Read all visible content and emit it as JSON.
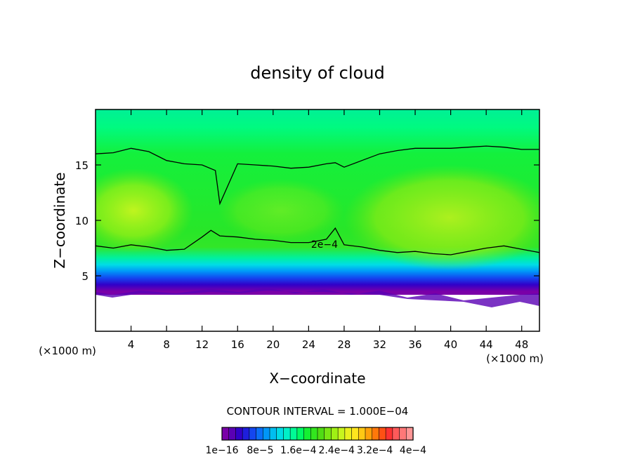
{
  "chart_data": {
    "type": "contour",
    "title": "density of cloud",
    "xlabel": "X−coordinate",
    "ylabel": "Z−coordinate",
    "x_unit": "(×1000 m)",
    "z_unit": "(×1000 m)",
    "xlim": [
      0,
      50
    ],
    "ylim": [
      0,
      20
    ],
    "x_ticks": [
      4,
      8,
      12,
      16,
      20,
      24,
      28,
      32,
      36,
      40,
      44,
      48
    ],
    "y_ticks": [
      5,
      10,
      15
    ],
    "contour_interval_text": "CONTOUR INTERVAL = 1.000E−04",
    "contour_label": "2e−4",
    "colorbar": {
      "labels": [
        "1e−16",
        "8e−5",
        "1.6e−4",
        "2.4e−4",
        "3.2e−4",
        "4e−4"
      ],
      "colors": [
        "#7a00a8",
        "#5a00b4",
        "#3200c8",
        "#1e1edc",
        "#1446f0",
        "#0a6ef8",
        "#0096f8",
        "#00bef0",
        "#00dce6",
        "#00f0c8",
        "#00fa96",
        "#00fa64",
        "#14f032",
        "#32e61e",
        "#50dc14",
        "#78e614",
        "#a0f014",
        "#c8f51e",
        "#eaf01e",
        "#ffe61e",
        "#ffc814",
        "#ffa00a",
        "#ff780a",
        "#ff5014",
        "#ff3232",
        "#ff5a5a",
        "#ff7878",
        "#ff9696"
      ]
    },
    "regions": {
      "cloud_base_z": [
        3.2,
        3.9
      ],
      "top_z": 20,
      "core_value_range": "2.4e−4 to 3.2e−4",
      "upper_band_value": "8e−5 to 1.6e−4"
    },
    "contours": [
      {
        "level": "2e−4",
        "label": "2e−4",
        "x": [
          0,
          2,
          4,
          6,
          8,
          10,
          12,
          13,
          14,
          16,
          18,
          20,
          22,
          24,
          26,
          27,
          28,
          30,
          32,
          34,
          36,
          38,
          40,
          42,
          44,
          46,
          48,
          50
        ],
        "z": [
          7.7,
          7.5,
          7.8,
          7.6,
          7.3,
          7.4,
          8.5,
          9.1,
          8.6,
          8.5,
          8.3,
          8.2,
          8.0,
          8.0,
          8.3,
          9.3,
          7.8,
          7.6,
          7.3,
          7.1,
          7.2,
          7.0,
          6.9,
          7.2,
          7.5,
          7.7,
          7.4,
          7.1
        ]
      },
      {
        "level": "2e−4",
        "label": "",
        "x": [
          0,
          2,
          4,
          6,
          8,
          10,
          12,
          13.5,
          14,
          16,
          18,
          20,
          22,
          24,
          26,
          27,
          28,
          30,
          32,
          34,
          36,
          38,
          40,
          42,
          44,
          46,
          48,
          50
        ],
        "z": [
          16.0,
          16.1,
          16.5,
          16.2,
          15.4,
          15.1,
          15.0,
          14.5,
          11.5,
          15.1,
          15.0,
          14.9,
          14.7,
          14.8,
          15.1,
          15.2,
          14.8,
          15.4,
          16.0,
          16.3,
          16.5,
          16.5,
          16.5,
          16.6,
          16.7,
          16.6,
          16.4,
          16.4
        ]
      }
    ]
  }
}
